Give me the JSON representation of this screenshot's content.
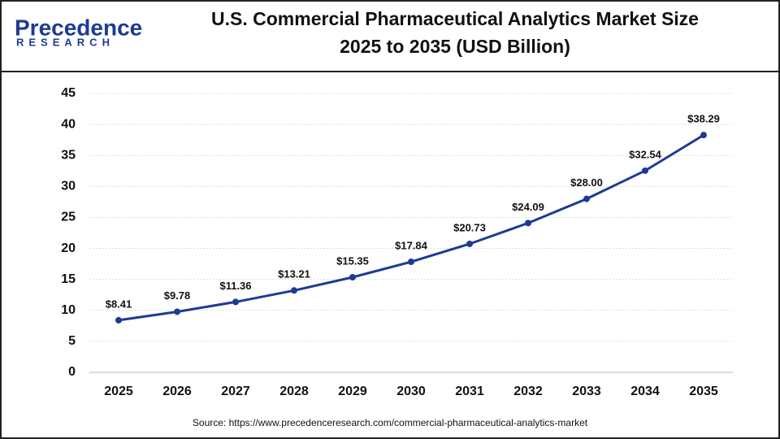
{
  "logo": {
    "name": "Precedence",
    "tagline": "RESEARCH"
  },
  "chart_data": {
    "type": "line",
    "title_lines": [
      "U.S. Commercial Pharmaceutical Analytics Market Size",
      "2025 to 2035 (USD Billion)"
    ],
    "categories": [
      "2025",
      "2026",
      "2027",
      "2028",
      "2029",
      "2030",
      "2031",
      "2032",
      "2033",
      "2034",
      "2035"
    ],
    "values": [
      8.41,
      9.78,
      11.36,
      13.21,
      15.35,
      17.84,
      20.73,
      24.09,
      28.0,
      32.54,
      38.29
    ],
    "value_labels": [
      "$8.41",
      "$9.78",
      "$11.36",
      "$13.21",
      "$15.35",
      "$17.84",
      "$20.73",
      "$24.09",
      "$28.00",
      "$32.54",
      "$38.29"
    ],
    "color": "#1d3a94",
    "ylim": [
      0,
      45
    ],
    "yticks": [
      0,
      5,
      10,
      15,
      20,
      25,
      30,
      35,
      40,
      45
    ],
    "grid": true,
    "source": "Source: https://www.precedenceresearch.com/commercial-pharmaceutical-analytics-market"
  }
}
